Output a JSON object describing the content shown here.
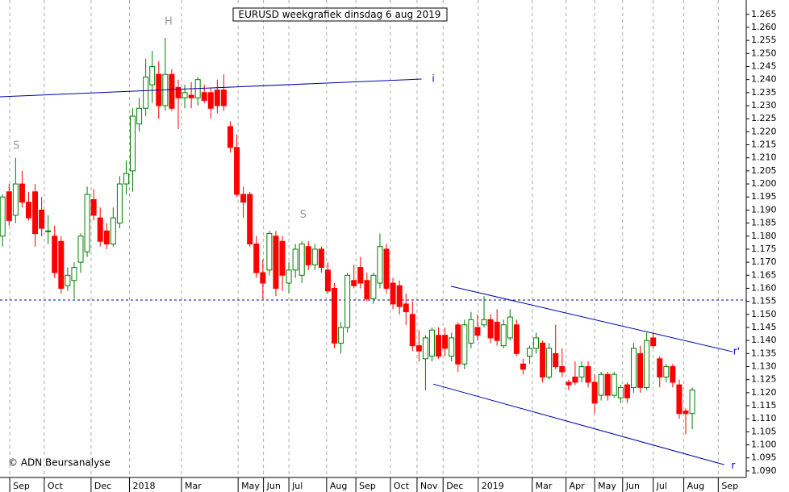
{
  "chart_data": {
    "type": "candlestick",
    "title": "EURUSD weekgrafiek dinsdag 6 aug 2019",
    "credit": "© ADN Beursanalyse",
    "up_color": "#008000",
    "down_color": "#ff0000",
    "line_color": "#0000aa",
    "grid": true,
    "series": [
      {
        "x": [
          0,
          1,
          2,
          3,
          4,
          5,
          6,
          7,
          8,
          9,
          10,
          11,
          12,
          13,
          14,
          15,
          16,
          17,
          18,
          19,
          20,
          21,
          22,
          23,
          24,
          25,
          26,
          27,
          28,
          29,
          30,
          31,
          32,
          33,
          34,
          35,
          36,
          37,
          38,
          39,
          40,
          41,
          42,
          43,
          44,
          45,
          46,
          47,
          48,
          49,
          50,
          51,
          52,
          53,
          54,
          55,
          56,
          57,
          58,
          59,
          60,
          61,
          62,
          63,
          64,
          65,
          66,
          67,
          68,
          69,
          70,
          71,
          72,
          73,
          74,
          75,
          76,
          77,
          78,
          79,
          80,
          81,
          82,
          83,
          84,
          85,
          86,
          87,
          88,
          89,
          90,
          91,
          92,
          93,
          94,
          95,
          96,
          97,
          98,
          99,
          100,
          101,
          102,
          103,
          104,
          105,
          106
        ],
        "open": [
          1.18,
          1.197,
          1.188,
          1.2,
          1.193,
          1.197,
          1.19,
          1.182,
          1.18,
          1.178,
          1.161,
          1.163,
          1.17,
          1.174,
          1.194,
          1.187,
          1.182,
          1.177,
          1.185,
          1.2,
          1.205,
          1.223,
          1.229,
          1.238,
          1.242,
          1.23,
          1.242,
          1.237,
          1.233,
          1.234,
          1.233,
          1.235,
          1.235,
          1.236,
          1.236,
          1.222,
          1.214,
          1.196,
          1.196,
          1.177,
          1.166,
          1.167,
          1.18,
          1.178,
          1.162,
          1.167,
          1.165,
          1.176,
          1.169,
          1.175,
          1.167,
          1.16,
          1.139,
          1.145,
          1.163,
          1.168,
          1.163,
          1.156,
          1.162,
          1.175,
          1.162,
          1.161,
          1.154,
          1.15,
          1.138,
          1.133,
          1.134,
          1.142,
          1.142,
          1.134,
          1.146,
          1.131,
          1.139,
          1.145,
          1.146,
          1.148,
          1.147,
          1.138,
          1.141,
          1.146,
          1.131,
          1.134,
          1.137,
          1.139,
          1.126,
          1.135,
          1.13,
          1.124,
          1.126,
          1.126,
          1.13,
          1.124,
          1.119,
          1.127,
          1.119,
          1.118,
          1.123,
          1.122,
          1.135,
          1.122,
          1.141,
          1.133,
          1.126,
          1.13,
          1.123,
          1.113,
          1.112
        ],
        "high": [
          1.196,
          1.2,
          1.21,
          1.205,
          1.197,
          1.2,
          1.195,
          1.188,
          1.184,
          1.18,
          1.168,
          1.17,
          1.181,
          1.199,
          1.198,
          1.191,
          1.185,
          1.191,
          1.203,
          1.209,
          1.229,
          1.233,
          1.248,
          1.251,
          1.247,
          1.256,
          1.244,
          1.24,
          1.238,
          1.239,
          1.241,
          1.238,
          1.237,
          1.24,
          1.242,
          1.224,
          1.219,
          1.199,
          1.197,
          1.18,
          1.171,
          1.182,
          1.182,
          1.18,
          1.17,
          1.177,
          1.178,
          1.178,
          1.177,
          1.176,
          1.17,
          1.162,
          1.147,
          1.166,
          1.169,
          1.172,
          1.166,
          1.166,
          1.181,
          1.177,
          1.164,
          1.163,
          1.158,
          1.155,
          1.144,
          1.142,
          1.145,
          1.145,
          1.145,
          1.143,
          1.147,
          1.148,
          1.151,
          1.15,
          1.157,
          1.15,
          1.152,
          1.148,
          1.152,
          1.148,
          1.133,
          1.138,
          1.143,
          1.14,
          1.139,
          1.146,
          1.137,
          1.125,
          1.132,
          1.132,
          1.132,
          1.127,
          1.128,
          1.128,
          1.128,
          1.123,
          1.124,
          1.139,
          1.138,
          1.143,
          1.143,
          1.134,
          1.131,
          1.131,
          1.125,
          1.114,
          1.122
        ],
        "low": [
          1.176,
          1.184,
          1.185,
          1.191,
          1.186,
          1.176,
          1.18,
          1.177,
          1.164,
          1.158,
          1.159,
          1.156,
          1.166,
          1.172,
          1.186,
          1.176,
          1.175,
          1.176,
          1.183,
          1.196,
          1.197,
          1.22,
          1.226,
          1.231,
          1.225,
          1.228,
          1.228,
          1.221,
          1.229,
          1.229,
          1.23,
          1.231,
          1.225,
          1.227,
          1.228,
          1.212,
          1.195,
          1.187,
          1.176,
          1.164,
          1.156,
          1.165,
          1.157,
          1.159,
          1.158,
          1.164,
          1.162,
          1.167,
          1.167,
          1.166,
          1.158,
          1.137,
          1.135,
          1.143,
          1.16,
          1.16,
          1.155,
          1.154,
          1.16,
          1.158,
          1.152,
          1.15,
          1.146,
          1.136,
          1.132,
          1.121,
          1.132,
          1.133,
          1.134,
          1.132,
          1.128,
          1.129,
          1.137,
          1.14,
          1.145,
          1.139,
          1.138,
          1.137,
          1.14,
          1.134,
          1.127,
          1.131,
          1.135,
          1.124,
          1.125,
          1.129,
          1.126,
          1.121,
          1.123,
          1.124,
          1.122,
          1.112,
          1.117,
          1.117,
          1.118,
          1.116,
          1.116,
          1.12,
          1.12,
          1.121,
          1.137,
          1.122,
          1.124,
          1.122,
          1.11,
          1.104,
          1.106
        ],
        "close": [
          1.195,
          1.186,
          1.2,
          1.193,
          1.187,
          1.181,
          1.183,
          1.182,
          1.166,
          1.16,
          1.165,
          1.168,
          1.18,
          1.196,
          1.188,
          1.178,
          1.177,
          1.187,
          1.2,
          1.204,
          1.226,
          1.229,
          1.241,
          1.245,
          1.23,
          1.242,
          1.229,
          1.233,
          1.235,
          1.233,
          1.24,
          1.232,
          1.229,
          1.23,
          1.23,
          1.214,
          1.196,
          1.193,
          1.177,
          1.166,
          1.162,
          1.181,
          1.16,
          1.165,
          1.167,
          1.175,
          1.177,
          1.169,
          1.175,
          1.168,
          1.159,
          1.139,
          1.145,
          1.165,
          1.161,
          1.162,
          1.156,
          1.165,
          1.176,
          1.16,
          1.154,
          1.153,
          1.151,
          1.138,
          1.136,
          1.141,
          1.144,
          1.134,
          1.137,
          1.141,
          1.131,
          1.146,
          1.148,
          1.142,
          1.148,
          1.141,
          1.14,
          1.146,
          1.149,
          1.135,
          1.129,
          1.137,
          1.141,
          1.126,
          1.137,
          1.13,
          1.128,
          1.123,
          1.124,
          1.13,
          1.124,
          1.116,
          1.127,
          1.119,
          1.127,
          1.122,
          1.118,
          1.137,
          1.122,
          1.14,
          1.138,
          1.126,
          1.13,
          1.124,
          1.112,
          1.112,
          1.121
        ]
      }
    ],
    "lines": [
      {
        "x": [
          -0.4,
          64.4
        ],
        "y": [
          1.2334,
          1.2402
        ]
      },
      {
        "x": [
          68.9,
          112.2
        ],
        "y": [
          1.1608,
          1.1357
        ]
      },
      {
        "x": [
          66.2,
          110.9
        ],
        "y": [
          1.1233,
          1.0924
        ]
      }
    ],
    "hline": 1.1555,
    "annotations": [
      {
        "text": "H",
        "x": 25.5,
        "y": 1.2622,
        "style": "gray"
      },
      {
        "text": "S",
        "x": 2.1,
        "y": 1.2145,
        "style": "gray"
      },
      {
        "text": "S",
        "x": 46.2,
        "y": 1.1881,
        "style": "gray"
      },
      {
        "text": "i",
        "x": 66.2,
        "y": 1.2402,
        "style": "blue"
      },
      {
        "text": "r'",
        "x": 112.8,
        "y": 1.1357,
        "style": "blue"
      },
      {
        "text": "r",
        "x": 112.3,
        "y": 1.092,
        "style": "blue"
      }
    ],
    "xlim": [
      -0.4,
      114.3
    ],
    "xticks": [
      {
        "value": 1.1,
        "label": "Sep"
      },
      {
        "value": 6.4,
        "label": "Oct"
      },
      {
        "value": 13.6,
        "label": "Dec"
      },
      {
        "value": 19.5,
        "label": "2018"
      },
      {
        "value": 27.5,
        "label": "Mar"
      },
      {
        "value": 36.2,
        "label": "May"
      },
      {
        "value": 40.1,
        "label": "Jun"
      },
      {
        "value": 44,
        "label": "Jul"
      },
      {
        "value": 49.8,
        "label": "Aug"
      },
      {
        "value": 54.3,
        "label": "Sep"
      },
      {
        "value": 59.6,
        "label": "Oct"
      },
      {
        "value": 63.7,
        "label": "Nov"
      },
      {
        "value": 67.7,
        "label": "Dec"
      },
      {
        "value": 73.1,
        "label": "2019"
      },
      {
        "value": 81.4,
        "label": "Mar"
      },
      {
        "value": 86.6,
        "label": "Apr"
      },
      {
        "value": 91,
        "label": "May"
      },
      {
        "value": 95.3,
        "label": "Jun"
      },
      {
        "value": 100,
        "label": "Jul"
      },
      {
        "value": 104.7,
        "label": "Aug"
      },
      {
        "value": 110,
        "label": "Sep"
      }
    ],
    "ylim": [
      1.0875,
      1.2705
    ],
    "yticks": [
      {
        "value": 1.09,
        "label": "1.090"
      },
      1.095,
      {
        "value": 1.1,
        "label": "1.100"
      },
      1.105,
      {
        "value": 1.11,
        "label": "1.110"
      },
      1.115,
      {
        "value": 1.12,
        "label": "1.120"
      },
      1.125,
      {
        "value": 1.13,
        "label": "1.130"
      },
      1.135,
      {
        "value": 1.14,
        "label": "1.140"
      },
      1.145,
      {
        "value": 1.15,
        "label": "1.150"
      },
      1.155,
      {
        "value": 1.16,
        "label": "1.160"
      },
      1.165,
      {
        "value": 1.17,
        "label": "1.170"
      },
      1.175,
      {
        "value": 1.18,
        "label": "1.180"
      },
      1.185,
      {
        "value": 1.19,
        "label": "1.190"
      },
      1.195,
      {
        "value": 1.2,
        "label": "1.200"
      },
      1.205,
      {
        "value": 1.21,
        "label": "1.210"
      },
      1.215,
      {
        "value": 1.22,
        "label": "1.220"
      },
      1.225,
      {
        "value": 1.23,
        "label": "1.230"
      },
      1.235,
      {
        "value": 1.24,
        "label": "1.240"
      },
      1.245,
      {
        "value": 1.25,
        "label": "1.250"
      },
      1.255,
      {
        "value": 1.26,
        "label": "1.260"
      },
      1.265
    ]
  }
}
